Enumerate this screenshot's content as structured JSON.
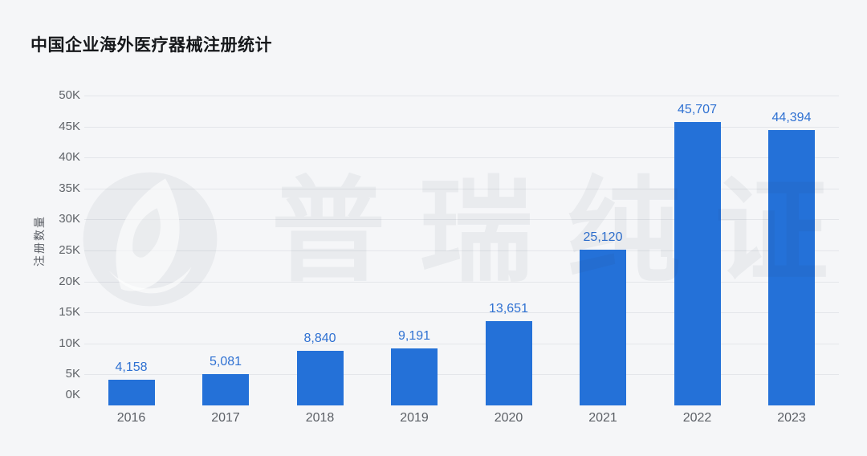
{
  "page": {
    "background": "#f5f6f8"
  },
  "header": {
    "title": "中国企业海外医疗器械注册统计"
  },
  "watermark": {
    "brand_text": "普瑞纯证",
    "logo": "leaf-in-circle"
  },
  "chart_data": {
    "type": "bar",
    "title": "中国企业海外医疗器械注册统计",
    "categories": [
      "2016",
      "2017",
      "2018",
      "2019",
      "2020",
      "2021",
      "2022",
      "2023"
    ],
    "values": [
      4158,
      5081,
      8840,
      9191,
      13651,
      25120,
      45707,
      44394
    ],
    "value_labels": [
      "4,158",
      "5,081",
      "8,840",
      "9,191",
      "13,651",
      "25,120",
      "45,707",
      "44,394"
    ],
    "xlabel": "",
    "ylabel": "注册数量",
    "ylim": [
      0,
      50000
    ],
    "y_ticks_top_to_bottom": [
      "50K",
      "45K",
      "40K",
      "35K",
      "30K",
      "25K",
      "20K",
      "15K",
      "10K",
      "5K",
      "0K"
    ],
    "grid": true,
    "legend": false,
    "bar_color": "#2471d8",
    "value_label_color": "#2f71d2",
    "axis_text_color": "#5f6368"
  }
}
